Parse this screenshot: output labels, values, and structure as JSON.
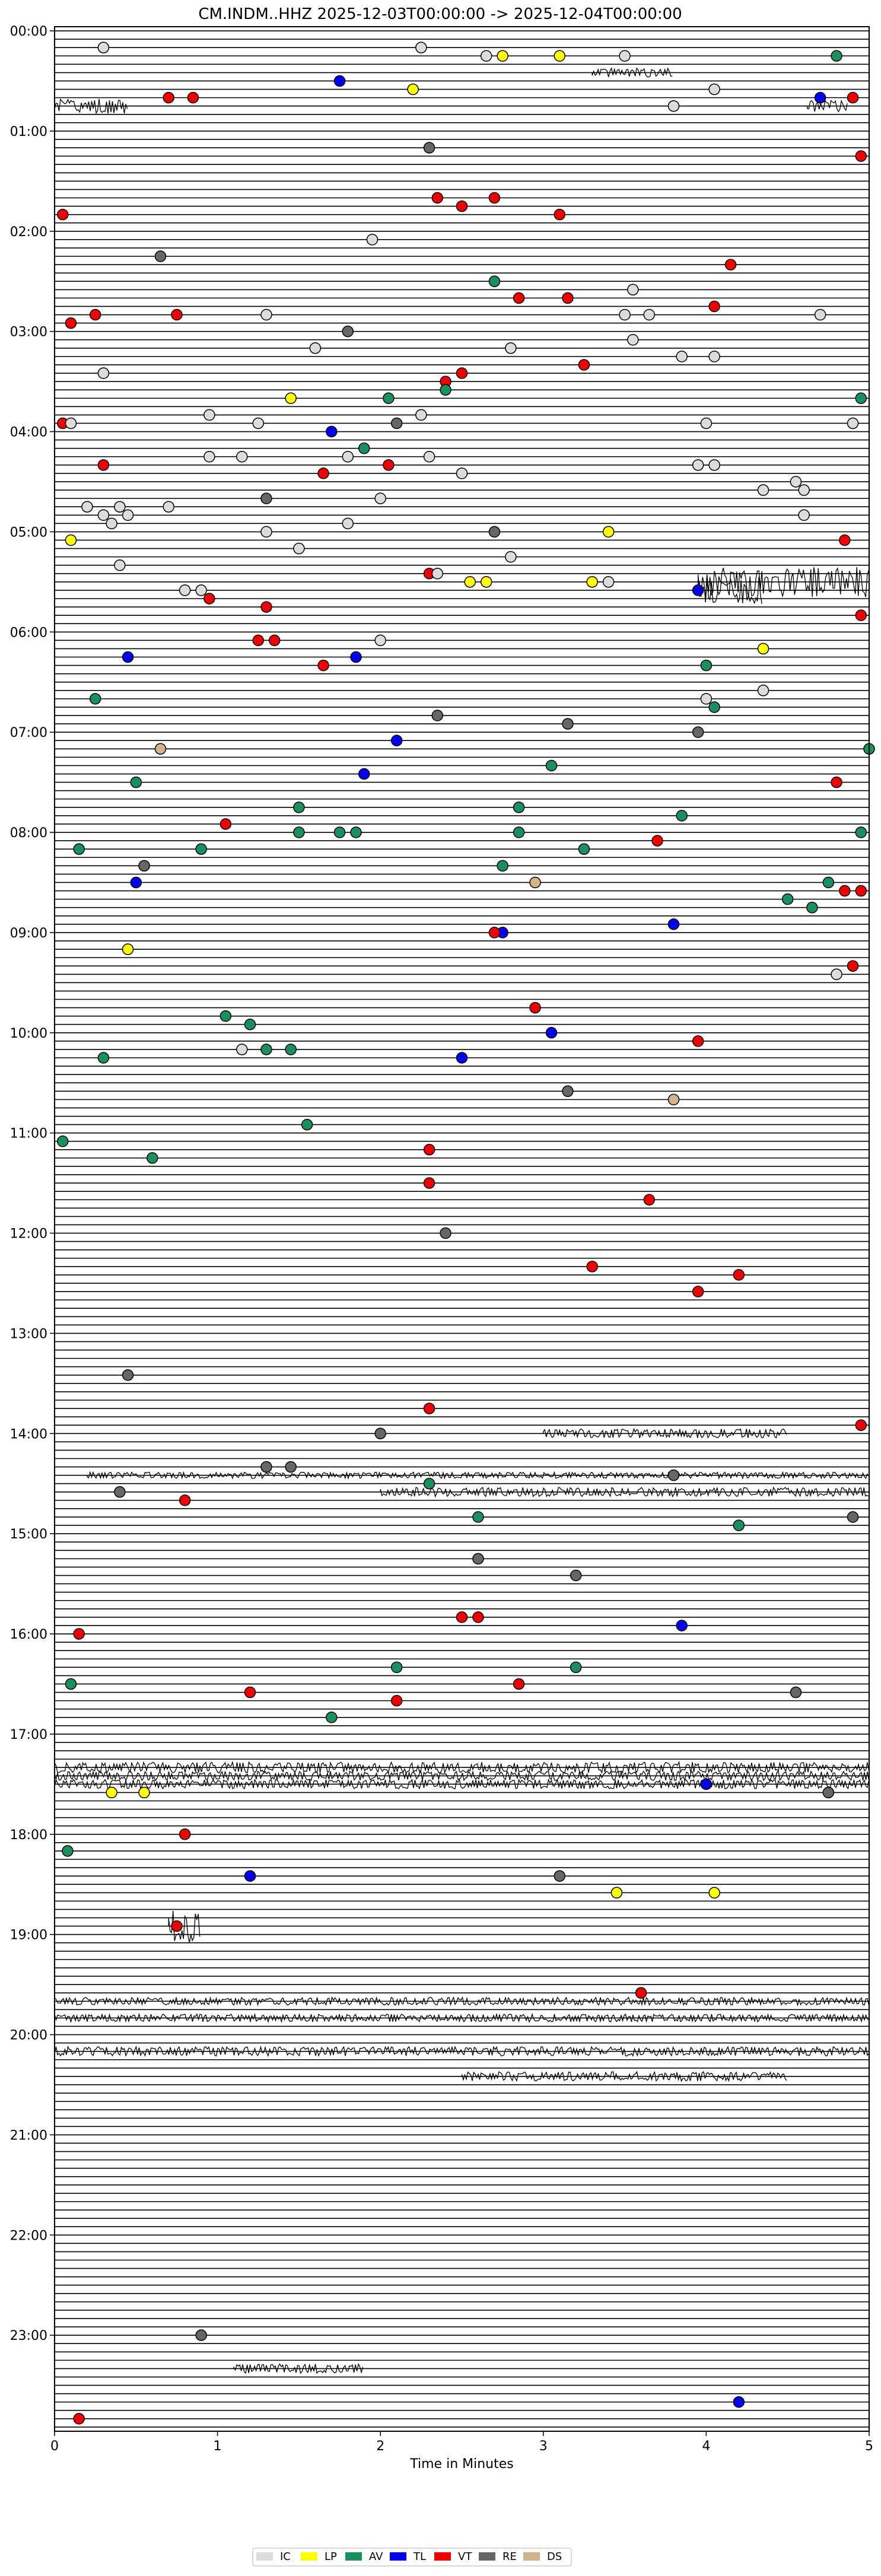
{
  "chart_data": {
    "type": "scatter",
    "title": "CM.INDM..HHZ  2025-12-03T00:00:00 -> 2025-12-04T00:00:00",
    "xlabel": "Time in Minutes",
    "ylabel": "",
    "xlim": [
      0,
      5
    ],
    "xticks": [
      "0",
      "1",
      "2",
      "3",
      "4",
      "5"
    ],
    "yticks": [
      "00:00",
      "01:00",
      "02:00",
      "03:00",
      "04:00",
      "05:00",
      "06:00",
      "07:00",
      "08:00",
      "09:00",
      "10:00",
      "11:00",
      "12:00",
      "13:00",
      "14:00",
      "15:00",
      "16:00",
      "17:00",
      "18:00",
      "19:00",
      "20:00",
      "21:00",
      "22:00",
      "23:00"
    ],
    "rows_per_hour": 12,
    "total_rows": 288,
    "legend": [
      {
        "code": "IC",
        "color": "#dcdcdc"
      },
      {
        "code": "LP",
        "color": "#ffff00"
      },
      {
        "code": "AV",
        "color": "#1a9060"
      },
      {
        "code": "TL",
        "color": "#0000ee"
      },
      {
        "code": "VT",
        "color": "#ee0000"
      },
      {
        "code": "RE",
        "color": "#666666"
      },
      {
        "code": "DS",
        "color": "#d2b48c"
      }
    ],
    "activity": [
      {
        "row": 5,
        "x": 3.3,
        "w": 0.5,
        "amp": 6
      },
      {
        "row": 9,
        "x": 0,
        "w": 0.45,
        "amp": 10
      },
      {
        "row": 9,
        "x": 4.62,
        "w": 0.25,
        "amp": 8
      },
      {
        "row": 66,
        "x": 3.95,
        "w": 1.05,
        "amp": 20
      },
      {
        "row": 67,
        "x": 3.95,
        "w": 0.4,
        "amp": 18
      },
      {
        "row": 168,
        "x": 3.0,
        "w": 1.5,
        "amp": 6
      },
      {
        "row": 173,
        "x": 0.2,
        "w": 4.8,
        "amp": 4
      },
      {
        "row": 175,
        "x": 2.0,
        "w": 3.0,
        "amp": 6
      },
      {
        "row": 208,
        "x": 0,
        "w": 5.0,
        "amp": 7
      },
      {
        "row": 209,
        "x": 0,
        "w": 5.0,
        "amp": 6
      },
      {
        "row": 210,
        "x": 0,
        "w": 5.0,
        "amp": 6
      },
      {
        "row": 227,
        "x": 0.7,
        "w": 0.2,
        "amp": 22
      },
      {
        "row": 236,
        "x": 0,
        "w": 5.0,
        "amp": 5
      },
      {
        "row": 238,
        "x": 0,
        "w": 5.0,
        "amp": 5
      },
      {
        "row": 242,
        "x": 0,
        "w": 5.0,
        "amp": 6
      },
      {
        "row": 245,
        "x": 2.5,
        "w": 2.0,
        "amp": 6
      },
      {
        "row": 280,
        "x": 1.1,
        "w": 0.8,
        "amp": 6
      }
    ],
    "events": [
      {
        "row": 2,
        "x": 0.3,
        "c": "IC"
      },
      {
        "row": 2,
        "x": 2.25,
        "c": "IC"
      },
      {
        "row": 3,
        "x": 2.65,
        "c": "IC"
      },
      {
        "row": 3,
        "x": 2.75,
        "c": "LP"
      },
      {
        "row": 3,
        "x": 3.1,
        "c": "LP"
      },
      {
        "row": 3,
        "x": 3.5,
        "c": "IC"
      },
      {
        "row": 3,
        "x": 4.8,
        "c": "AV"
      },
      {
        "row": 6,
        "x": 1.75,
        "c": "TL"
      },
      {
        "row": 7,
        "x": 2.2,
        "c": "LP"
      },
      {
        "row": 7,
        "x": 4.05,
        "c": "IC"
      },
      {
        "row": 8,
        "x": 0.7,
        "c": "VT"
      },
      {
        "row": 8,
        "x": 0.85,
        "c": "VT"
      },
      {
        "row": 8,
        "x": 4.7,
        "c": "TL"
      },
      {
        "row": 8,
        "x": 4.9,
        "c": "VT"
      },
      {
        "row": 9,
        "x": 3.8,
        "c": "IC"
      },
      {
        "row": 14,
        "x": 2.3,
        "c": "RE"
      },
      {
        "row": 15,
        "x": 4.95,
        "c": "VT"
      },
      {
        "row": 20,
        "x": 2.35,
        "c": "VT"
      },
      {
        "row": 20,
        "x": 2.7,
        "c": "VT"
      },
      {
        "row": 21,
        "x": 2.5,
        "c": "VT"
      },
      {
        "row": 22,
        "x": 0.05,
        "c": "VT"
      },
      {
        "row": 22,
        "x": 3.1,
        "c": "VT"
      },
      {
        "row": 25,
        "x": 1.95,
        "c": "IC"
      },
      {
        "row": 27,
        "x": 0.65,
        "c": "RE"
      },
      {
        "row": 28,
        "x": 4.15,
        "c": "VT"
      },
      {
        "row": 30,
        "x": 2.7,
        "c": "AV"
      },
      {
        "row": 31,
        "x": 3.55,
        "c": "IC"
      },
      {
        "row": 32,
        "x": 2.85,
        "c": "VT"
      },
      {
        "row": 32,
        "x": 3.15,
        "c": "VT"
      },
      {
        "row": 33,
        "x": 4.05,
        "c": "VT"
      },
      {
        "row": 34,
        "x": 0.25,
        "c": "VT"
      },
      {
        "row": 34,
        "x": 0.75,
        "c": "VT"
      },
      {
        "row": 34,
        "x": 1.3,
        "c": "IC"
      },
      {
        "row": 34,
        "x": 3.5,
        "c": "IC"
      },
      {
        "row": 34,
        "x": 3.65,
        "c": "IC"
      },
      {
        "row": 34,
        "x": 4.7,
        "c": "IC"
      },
      {
        "row": 35,
        "x": 0.1,
        "c": "VT"
      },
      {
        "row": 36,
        "x": 1.8,
        "c": "RE"
      },
      {
        "row": 37,
        "x": 3.55,
        "c": "IC"
      },
      {
        "row": 38,
        "x": 1.6,
        "c": "IC"
      },
      {
        "row": 38,
        "x": 2.8,
        "c": "IC"
      },
      {
        "row": 39,
        "x": 3.85,
        "c": "IC"
      },
      {
        "row": 39,
        "x": 4.05,
        "c": "IC"
      },
      {
        "row": 40,
        "x": 3.25,
        "c": "VT"
      },
      {
        "row": 41,
        "x": 0.3,
        "c": "IC"
      },
      {
        "row": 41,
        "x": 2.5,
        "c": "VT"
      },
      {
        "row": 42,
        "x": 2.4,
        "c": "VT"
      },
      {
        "row": 43,
        "x": 2.4,
        "c": "AV"
      },
      {
        "row": 44,
        "x": 1.45,
        "c": "LP"
      },
      {
        "row": 44,
        "x": 2.05,
        "c": "AV"
      },
      {
        "row": 44,
        "x": 4.95,
        "c": "AV"
      },
      {
        "row": 46,
        "x": 0.95,
        "c": "IC"
      },
      {
        "row": 46,
        "x": 2.25,
        "c": "IC"
      },
      {
        "row": 47,
        "x": 0.05,
        "c": "VT"
      },
      {
        "row": 47,
        "x": 0.1,
        "c": "IC"
      },
      {
        "row": 47,
        "x": 1.25,
        "c": "IC"
      },
      {
        "row": 47,
        "x": 2.1,
        "c": "RE"
      },
      {
        "row": 47,
        "x": 4.0,
        "c": "IC"
      },
      {
        "row": 47,
        "x": 4.9,
        "c": "IC"
      },
      {
        "row": 48,
        "x": 1.7,
        "c": "TL"
      },
      {
        "row": 50,
        "x": 1.9,
        "c": "AV"
      },
      {
        "row": 51,
        "x": 0.95,
        "c": "IC"
      },
      {
        "row": 51,
        "x": 1.15,
        "c": "IC"
      },
      {
        "row": 51,
        "x": 1.8,
        "c": "IC"
      },
      {
        "row": 51,
        "x": 2.3,
        "c": "IC"
      },
      {
        "row": 52,
        "x": 0.3,
        "c": "VT"
      },
      {
        "row": 52,
        "x": 2.05,
        "c": "VT"
      },
      {
        "row": 52,
        "x": 3.95,
        "c": "IC"
      },
      {
        "row": 52,
        "x": 4.05,
        "c": "IC"
      },
      {
        "row": 53,
        "x": 1.65,
        "c": "VT"
      },
      {
        "row": 53,
        "x": 2.5,
        "c": "IC"
      },
      {
        "row": 54,
        "x": 4.55,
        "c": "IC"
      },
      {
        "row": 55,
        "x": 4.35,
        "c": "IC"
      },
      {
        "row": 55,
        "x": 4.6,
        "c": "IC"
      },
      {
        "row": 56,
        "x": 1.3,
        "c": "RE"
      },
      {
        "row": 56,
        "x": 2.0,
        "c": "IC"
      },
      {
        "row": 57,
        "x": 0.2,
        "c": "IC"
      },
      {
        "row": 57,
        "x": 0.4,
        "c": "IC"
      },
      {
        "row": 57,
        "x": 0.7,
        "c": "IC"
      },
      {
        "row": 58,
        "x": 0.3,
        "c": "IC"
      },
      {
        "row": 58,
        "x": 0.45,
        "c": "IC"
      },
      {
        "row": 58,
        "x": 4.6,
        "c": "IC"
      },
      {
        "row": 59,
        "x": 0.35,
        "c": "IC"
      },
      {
        "row": 59,
        "x": 1.8,
        "c": "IC"
      },
      {
        "row": 60,
        "x": 1.3,
        "c": "IC"
      },
      {
        "row": 60,
        "x": 2.7,
        "c": "RE"
      },
      {
        "row": 60,
        "x": 3.4,
        "c": "LP"
      },
      {
        "row": 61,
        "x": 0.1,
        "c": "LP"
      },
      {
        "row": 61,
        "x": 4.85,
        "c": "VT"
      },
      {
        "row": 62,
        "x": 1.5,
        "c": "IC"
      },
      {
        "row": 63,
        "x": 2.8,
        "c": "IC"
      },
      {
        "row": 64,
        "x": 0.4,
        "c": "IC"
      },
      {
        "row": 65,
        "x": 2.3,
        "c": "VT"
      },
      {
        "row": 65,
        "x": 2.35,
        "c": "IC"
      },
      {
        "row": 66,
        "x": 2.55,
        "c": "LP"
      },
      {
        "row": 66,
        "x": 2.65,
        "c": "LP"
      },
      {
        "row": 66,
        "x": 3.3,
        "c": "LP"
      },
      {
        "row": 66,
        "x": 3.4,
        "c": "IC"
      },
      {
        "row": 67,
        "x": 0.8,
        "c": "IC"
      },
      {
        "row": 67,
        "x": 0.9,
        "c": "IC"
      },
      {
        "row": 67,
        "x": 3.95,
        "c": "TL"
      },
      {
        "row": 68,
        "x": 0.95,
        "c": "VT"
      },
      {
        "row": 69,
        "x": 1.3,
        "c": "VT"
      },
      {
        "row": 70,
        "x": 4.95,
        "c": "VT"
      },
      {
        "row": 73,
        "x": 1.25,
        "c": "VT"
      },
      {
        "row": 73,
        "x": 1.35,
        "c": "VT"
      },
      {
        "row": 73,
        "x": 2.0,
        "c": "IC"
      },
      {
        "row": 74,
        "x": 4.35,
        "c": "LP"
      },
      {
        "row": 75,
        "x": 0.45,
        "c": "TL"
      },
      {
        "row": 75,
        "x": 1.85,
        "c": "TL"
      },
      {
        "row": 76,
        "x": 1.65,
        "c": "VT"
      },
      {
        "row": 76,
        "x": 4.0,
        "c": "AV"
      },
      {
        "row": 79,
        "x": 4.35,
        "c": "IC"
      },
      {
        "row": 80,
        "x": 0.25,
        "c": "AV"
      },
      {
        "row": 80,
        "x": 4.0,
        "c": "IC"
      },
      {
        "row": 81,
        "x": 4.05,
        "c": "AV"
      },
      {
        "row": 82,
        "x": 2.35,
        "c": "RE"
      },
      {
        "row": 83,
        "x": 3.15,
        "c": "RE"
      },
      {
        "row": 84,
        "x": 3.95,
        "c": "RE"
      },
      {
        "row": 85,
        "x": 2.1,
        "c": "TL"
      },
      {
        "row": 86,
        "x": 0.65,
        "c": "DS"
      },
      {
        "row": 86,
        "x": 5.0,
        "c": "AV"
      },
      {
        "row": 88,
        "x": 3.05,
        "c": "AV"
      },
      {
        "row": 89,
        "x": 1.9,
        "c": "TL"
      },
      {
        "row": 90,
        "x": 0.5,
        "c": "AV"
      },
      {
        "row": 90,
        "x": 4.8,
        "c": "VT"
      },
      {
        "row": 93,
        "x": 1.5,
        "c": "AV"
      },
      {
        "row": 93,
        "x": 2.85,
        "c": "AV"
      },
      {
        "row": 94,
        "x": 3.85,
        "c": "AV"
      },
      {
        "row": 95,
        "x": 1.05,
        "c": "VT"
      },
      {
        "row": 96,
        "x": 1.5,
        "c": "AV"
      },
      {
        "row": 96,
        "x": 1.75,
        "c": "AV"
      },
      {
        "row": 96,
        "x": 1.85,
        "c": "AV"
      },
      {
        "row": 96,
        "x": 2.85,
        "c": "AV"
      },
      {
        "row": 96,
        "x": 4.95,
        "c": "AV"
      },
      {
        "row": 97,
        "x": 3.7,
        "c": "VT"
      },
      {
        "row": 98,
        "x": 0.15,
        "c": "AV"
      },
      {
        "row": 98,
        "x": 0.9,
        "c": "AV"
      },
      {
        "row": 98,
        "x": 3.25,
        "c": "AV"
      },
      {
        "row": 100,
        "x": 0.55,
        "c": "RE"
      },
      {
        "row": 100,
        "x": 2.75,
        "c": "AV"
      },
      {
        "row": 102,
        "x": 0.5,
        "c": "TL"
      },
      {
        "row": 102,
        "x": 2.95,
        "c": "DS"
      },
      {
        "row": 102,
        "x": 4.75,
        "c": "AV"
      },
      {
        "row": 103,
        "x": 4.95,
        "c": "VT"
      },
      {
        "row": 103,
        "x": 4.85,
        "c": "VT"
      },
      {
        "row": 104,
        "x": 4.5,
        "c": "AV"
      },
      {
        "row": 105,
        "x": 4.65,
        "c": "AV"
      },
      {
        "row": 107,
        "x": 3.8,
        "c": "TL"
      },
      {
        "row": 108,
        "x": 2.75,
        "c": "TL"
      },
      {
        "row": 108,
        "x": 2.7,
        "c": "VT"
      },
      {
        "row": 110,
        "x": 0.45,
        "c": "LP"
      },
      {
        "row": 112,
        "x": 4.9,
        "c": "VT"
      },
      {
        "row": 113,
        "x": 4.8,
        "c": "IC"
      },
      {
        "row": 117,
        "x": 2.95,
        "c": "VT"
      },
      {
        "row": 118,
        "x": 1.05,
        "c": "AV"
      },
      {
        "row": 119,
        "x": 1.2,
        "c": "AV"
      },
      {
        "row": 120,
        "x": 3.05,
        "c": "TL"
      },
      {
        "row": 121,
        "x": 3.95,
        "c": "VT"
      },
      {
        "row": 122,
        "x": 1.3,
        "c": "AV"
      },
      {
        "row": 122,
        "x": 1.45,
        "c": "AV"
      },
      {
        "row": 122,
        "x": 1.15,
        "c": "IC"
      },
      {
        "row": 123,
        "x": 0.3,
        "c": "AV"
      },
      {
        "row": 123,
        "x": 2.5,
        "c": "TL"
      },
      {
        "row": 127,
        "x": 3.15,
        "c": "RE"
      },
      {
        "row": 128,
        "x": 3.8,
        "c": "DS"
      },
      {
        "row": 131,
        "x": 1.55,
        "c": "AV"
      },
      {
        "row": 133,
        "x": 0.05,
        "c": "AV"
      },
      {
        "row": 134,
        "x": 2.3,
        "c": "VT"
      },
      {
        "row": 135,
        "x": 0.6,
        "c": "AV"
      },
      {
        "row": 138,
        "x": 2.3,
        "c": "VT"
      },
      {
        "row": 140,
        "x": 3.65,
        "c": "VT"
      },
      {
        "row": 144,
        "x": 2.4,
        "c": "RE"
      },
      {
        "row": 148,
        "x": 3.3,
        "c": "VT"
      },
      {
        "row": 149,
        "x": 4.2,
        "c": "VT"
      },
      {
        "row": 151,
        "x": 3.95,
        "c": "VT"
      },
      {
        "row": 161,
        "x": 0.45,
        "c": "RE"
      },
      {
        "row": 165,
        "x": 2.3,
        "c": "VT"
      },
      {
        "row": 167,
        "x": 4.95,
        "c": "VT"
      },
      {
        "row": 168,
        "x": 2.0,
        "c": "RE"
      },
      {
        "row": 172,
        "x": 1.3,
        "c": "RE"
      },
      {
        "row": 172,
        "x": 1.45,
        "c": "RE"
      },
      {
        "row": 173,
        "x": 3.8,
        "c": "RE"
      },
      {
        "row": 174,
        "x": 2.3,
        "c": "AV"
      },
      {
        "row": 175,
        "x": 0.4,
        "c": "RE"
      },
      {
        "row": 176,
        "x": 0.8,
        "c": "VT"
      },
      {
        "row": 178,
        "x": 2.6,
        "c": "AV"
      },
      {
        "row": 178,
        "x": 4.9,
        "c": "RE"
      },
      {
        "row": 179,
        "x": 4.2,
        "c": "AV"
      },
      {
        "row": 183,
        "x": 2.6,
        "c": "RE"
      },
      {
        "row": 185,
        "x": 3.2,
        "c": "RE"
      },
      {
        "row": 190,
        "x": 2.5,
        "c": "VT"
      },
      {
        "row": 190,
        "x": 2.6,
        "c": "VT"
      },
      {
        "row": 191,
        "x": 3.85,
        "c": "TL"
      },
      {
        "row": 192,
        "x": 0.15,
        "c": "VT"
      },
      {
        "row": 196,
        "x": 2.1,
        "c": "AV"
      },
      {
        "row": 196,
        "x": 3.2,
        "c": "AV"
      },
      {
        "row": 198,
        "x": 0.1,
        "c": "AV"
      },
      {
        "row": 198,
        "x": 2.85,
        "c": "VT"
      },
      {
        "row": 199,
        "x": 1.2,
        "c": "VT"
      },
      {
        "row": 199,
        "x": 4.55,
        "c": "RE"
      },
      {
        "row": 200,
        "x": 2.1,
        "c": "VT"
      },
      {
        "row": 202,
        "x": 1.7,
        "c": "AV"
      },
      {
        "row": 210,
        "x": 4.0,
        "c": "TL"
      },
      {
        "row": 211,
        "x": 0.35,
        "c": "LP"
      },
      {
        "row": 211,
        "x": 0.55,
        "c": "LP"
      },
      {
        "row": 211,
        "x": 4.75,
        "c": "RE"
      },
      {
        "row": 216,
        "x": 0.8,
        "c": "VT"
      },
      {
        "row": 218,
        "x": 0.08,
        "c": "AV"
      },
      {
        "row": 221,
        "x": 1.2,
        "c": "TL"
      },
      {
        "row": 221,
        "x": 3.1,
        "c": "RE"
      },
      {
        "row": 223,
        "x": 3.45,
        "c": "LP"
      },
      {
        "row": 223,
        "x": 4.05,
        "c": "LP"
      },
      {
        "row": 227,
        "x": 0.75,
        "c": "VT"
      },
      {
        "row": 235,
        "x": 3.6,
        "c": "VT"
      },
      {
        "row": 276,
        "x": 0.9,
        "c": "RE"
      },
      {
        "row": 284,
        "x": 4.2,
        "c": "TL"
      },
      {
        "row": 286,
        "x": 0.15,
        "c": "VT"
      }
    ]
  }
}
